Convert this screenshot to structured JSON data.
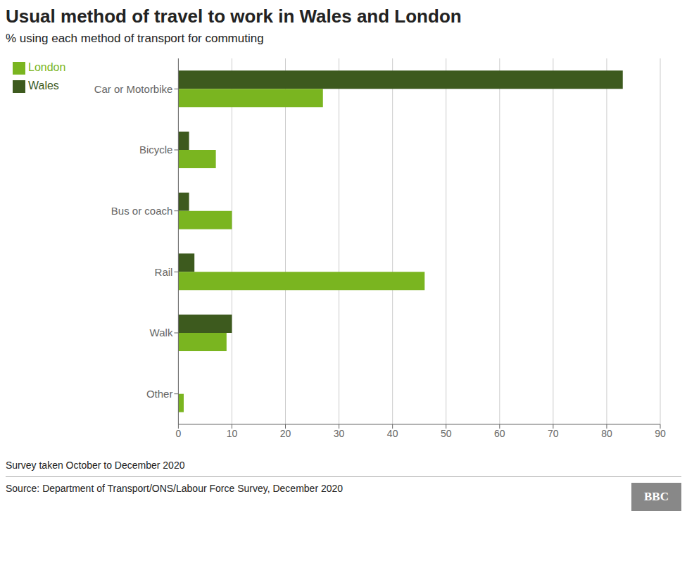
{
  "chart_data": {
    "type": "bar",
    "orientation": "horizontal",
    "title": "Usual method of travel to work in Wales and London",
    "subtitle": "% using each method of transport for commuting",
    "categories": [
      "Car or Motorbike",
      "Bicycle",
      "Bus or coach",
      "Rail",
      "Walk",
      "Other"
    ],
    "series": [
      {
        "name": "Wales",
        "color": "#3d5a1e",
        "values": [
          83,
          2,
          2,
          3,
          10,
          0
        ]
      },
      {
        "name": "London",
        "color": "#7ab520",
        "values": [
          27,
          7,
          10,
          46,
          9,
          1
        ]
      }
    ],
    "xlim": [
      0,
      90
    ],
    "xticks": [
      0,
      10,
      20,
      30,
      40,
      50,
      60,
      70,
      80,
      90
    ],
    "grid": true,
    "legend": "upper left",
    "annotations": [
      "Survey taken October to December 2020",
      "Source: Department of Transport/ONS/Labour Force Survey, December 2020",
      "BBC"
    ]
  }
}
